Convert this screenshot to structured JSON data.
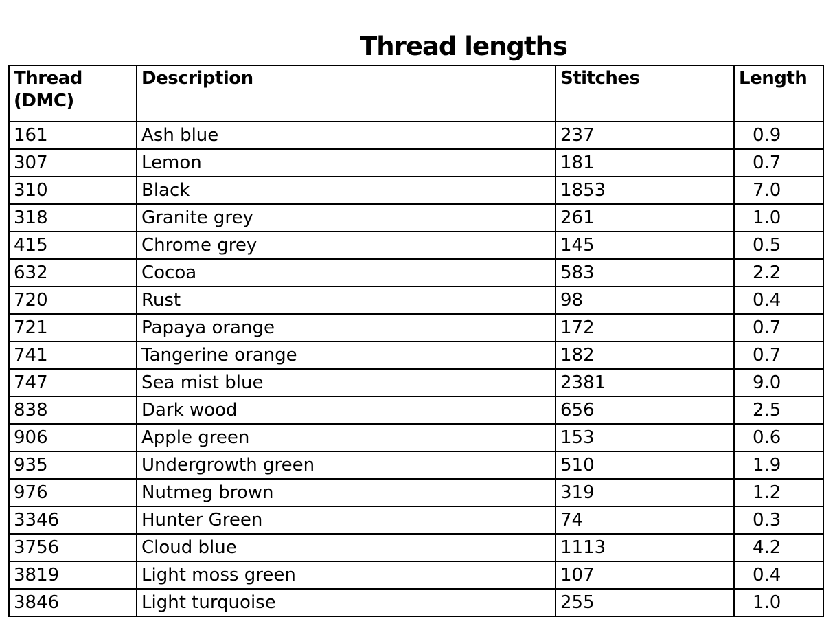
{
  "title": "Thread lengths",
  "columns": [
    "Thread (DMC)",
    "Description",
    "Stitches",
    "Length"
  ],
  "rows": [
    [
      "161",
      "Ash blue",
      "237",
      "0.9"
    ],
    [
      "307",
      "Lemon",
      "181",
      "0.7"
    ],
    [
      "310",
      "Black",
      "1853",
      "7.0"
    ],
    [
      "318",
      "Granite grey",
      "261",
      "1.0"
    ],
    [
      "415",
      "Chrome grey",
      "145",
      "0.5"
    ],
    [
      "632",
      "Cocoa",
      "583",
      "2.2"
    ],
    [
      "720",
      "Rust",
      "98",
      "0.4"
    ],
    [
      "721",
      "Papaya orange",
      "172",
      "0.7"
    ],
    [
      "741",
      "Tangerine orange",
      "182",
      "0.7"
    ],
    [
      "747",
      "Sea mist blue",
      "2381",
      "9.0"
    ],
    [
      "838",
      "Dark wood",
      "656",
      "2.5"
    ],
    [
      "906",
      "Apple green",
      "153",
      "0.6"
    ],
    [
      "935",
      "Undergrowth green",
      "510",
      "1.9"
    ],
    [
      "976",
      "Nutmeg brown",
      "319",
      "1.2"
    ],
    [
      "3346",
      "Hunter Green",
      "74",
      "0.3"
    ],
    [
      "3756",
      "Cloud blue",
      "1113",
      "4.2"
    ],
    [
      "3819",
      "Light moss green",
      "107",
      "0.4"
    ],
    [
      "3846",
      "Light turquoise",
      "255",
      "1.0"
    ]
  ]
}
